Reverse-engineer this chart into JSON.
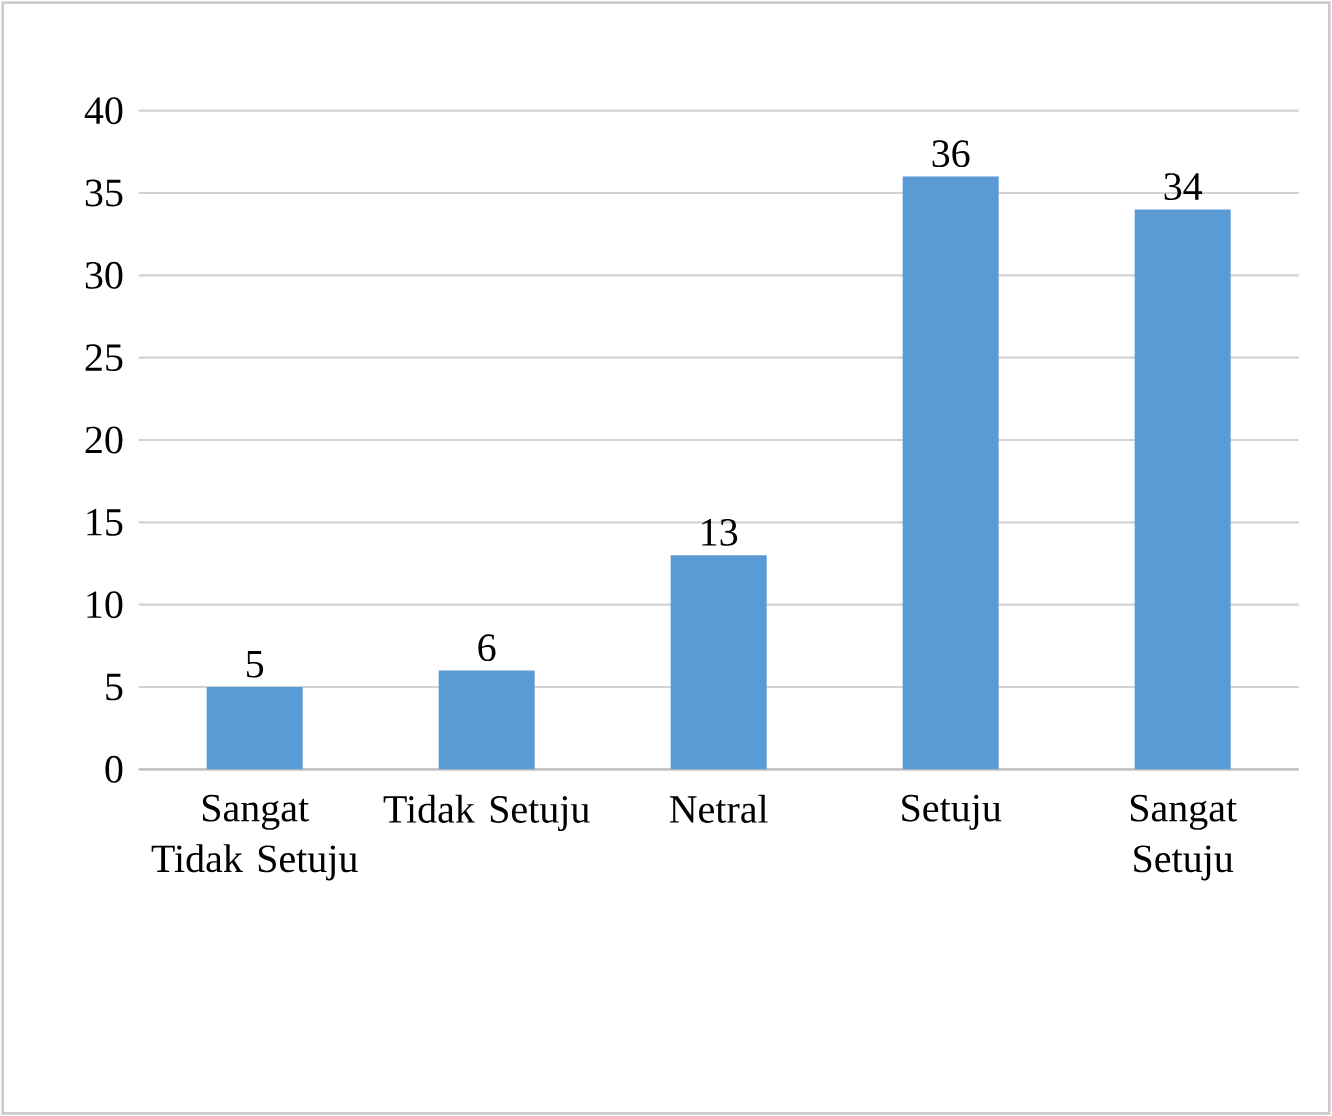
{
  "chart_data": {
    "type": "bar",
    "categories": [
      "Sangat Tidak Setuju",
      "Tidak Setuju",
      "Netral",
      "Setuju",
      "Sangat Setuju"
    ],
    "values": [
      5,
      6,
      13,
      36,
      34
    ],
    "color": "#5b9bd5",
    "ylim": [
      0,
      40
    ],
    "yticks": [
      0,
      5,
      10,
      15,
      20,
      25,
      30,
      35,
      40
    ],
    "grid": "y",
    "data_labels": true
  }
}
